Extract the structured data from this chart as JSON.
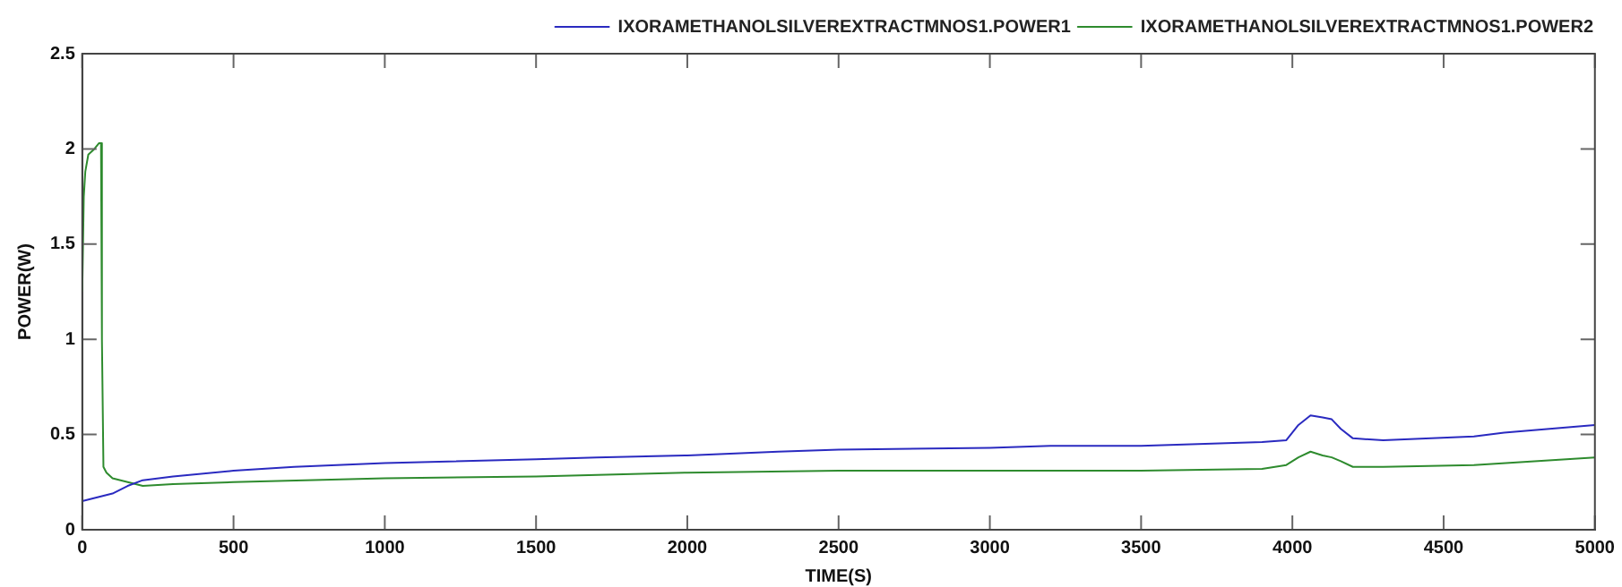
{
  "chart_data": {
    "type": "line",
    "xlabel": "TIME(S)",
    "ylabel": "POWER(W)",
    "xlim": [
      0,
      5000
    ],
    "xticks": [
      0,
      500,
      1000,
      1500,
      2000,
      2500,
      3000,
      3500,
      4000,
      4500,
      5000
    ],
    "ylim": [
      0,
      2.5
    ],
    "yticks": [
      0,
      0.5,
      1,
      1.5,
      2,
      2.5
    ],
    "grid": false,
    "legend": "top right",
    "marker": "none",
    "line_style": "solid",
    "series": [
      {
        "name": "IXORAMETHANOLSILVEREXTRACTMNOS1.POWER1",
        "color": "#2a2ac0",
        "x": [
          0,
          50,
          100,
          150,
          200,
          300,
          500,
          700,
          1000,
          1500,
          1700,
          2000,
          2300,
          2500,
          3000,
          3200,
          3500,
          3900,
          3980,
          4020,
          4060,
          4100,
          4130,
          4160,
          4200,
          4300,
          4600,
          4700,
          5000
        ],
        "values": [
          0.15,
          0.17,
          0.19,
          0.23,
          0.26,
          0.28,
          0.31,
          0.33,
          0.35,
          0.37,
          0.38,
          0.39,
          0.41,
          0.42,
          0.43,
          0.44,
          0.44,
          0.46,
          0.47,
          0.55,
          0.6,
          0.59,
          0.58,
          0.53,
          0.48,
          0.47,
          0.49,
          0.51,
          0.55
        ]
      },
      {
        "name": "IXORAMETHANOLSILVEREXTRACTMNOS1.POWER2",
        "color": "#2e8b2e",
        "x": [
          0,
          5,
          10,
          20,
          40,
          55,
          62,
          65,
          70,
          80,
          100,
          150,
          200,
          300,
          500,
          1000,
          1500,
          2000,
          2500,
          3000,
          3500,
          3900,
          3980,
          4020,
          4060,
          4100,
          4130,
          4160,
          4200,
          4300,
          4600,
          4800,
          5000
        ],
        "values": [
          1.25,
          1.75,
          1.88,
          1.97,
          2.0,
          2.03,
          2.03,
          1.0,
          0.33,
          0.3,
          0.27,
          0.25,
          0.23,
          0.24,
          0.25,
          0.27,
          0.28,
          0.3,
          0.31,
          0.31,
          0.31,
          0.32,
          0.34,
          0.38,
          0.41,
          0.39,
          0.38,
          0.36,
          0.33,
          0.33,
          0.34,
          0.36,
          0.38
        ]
      }
    ]
  }
}
